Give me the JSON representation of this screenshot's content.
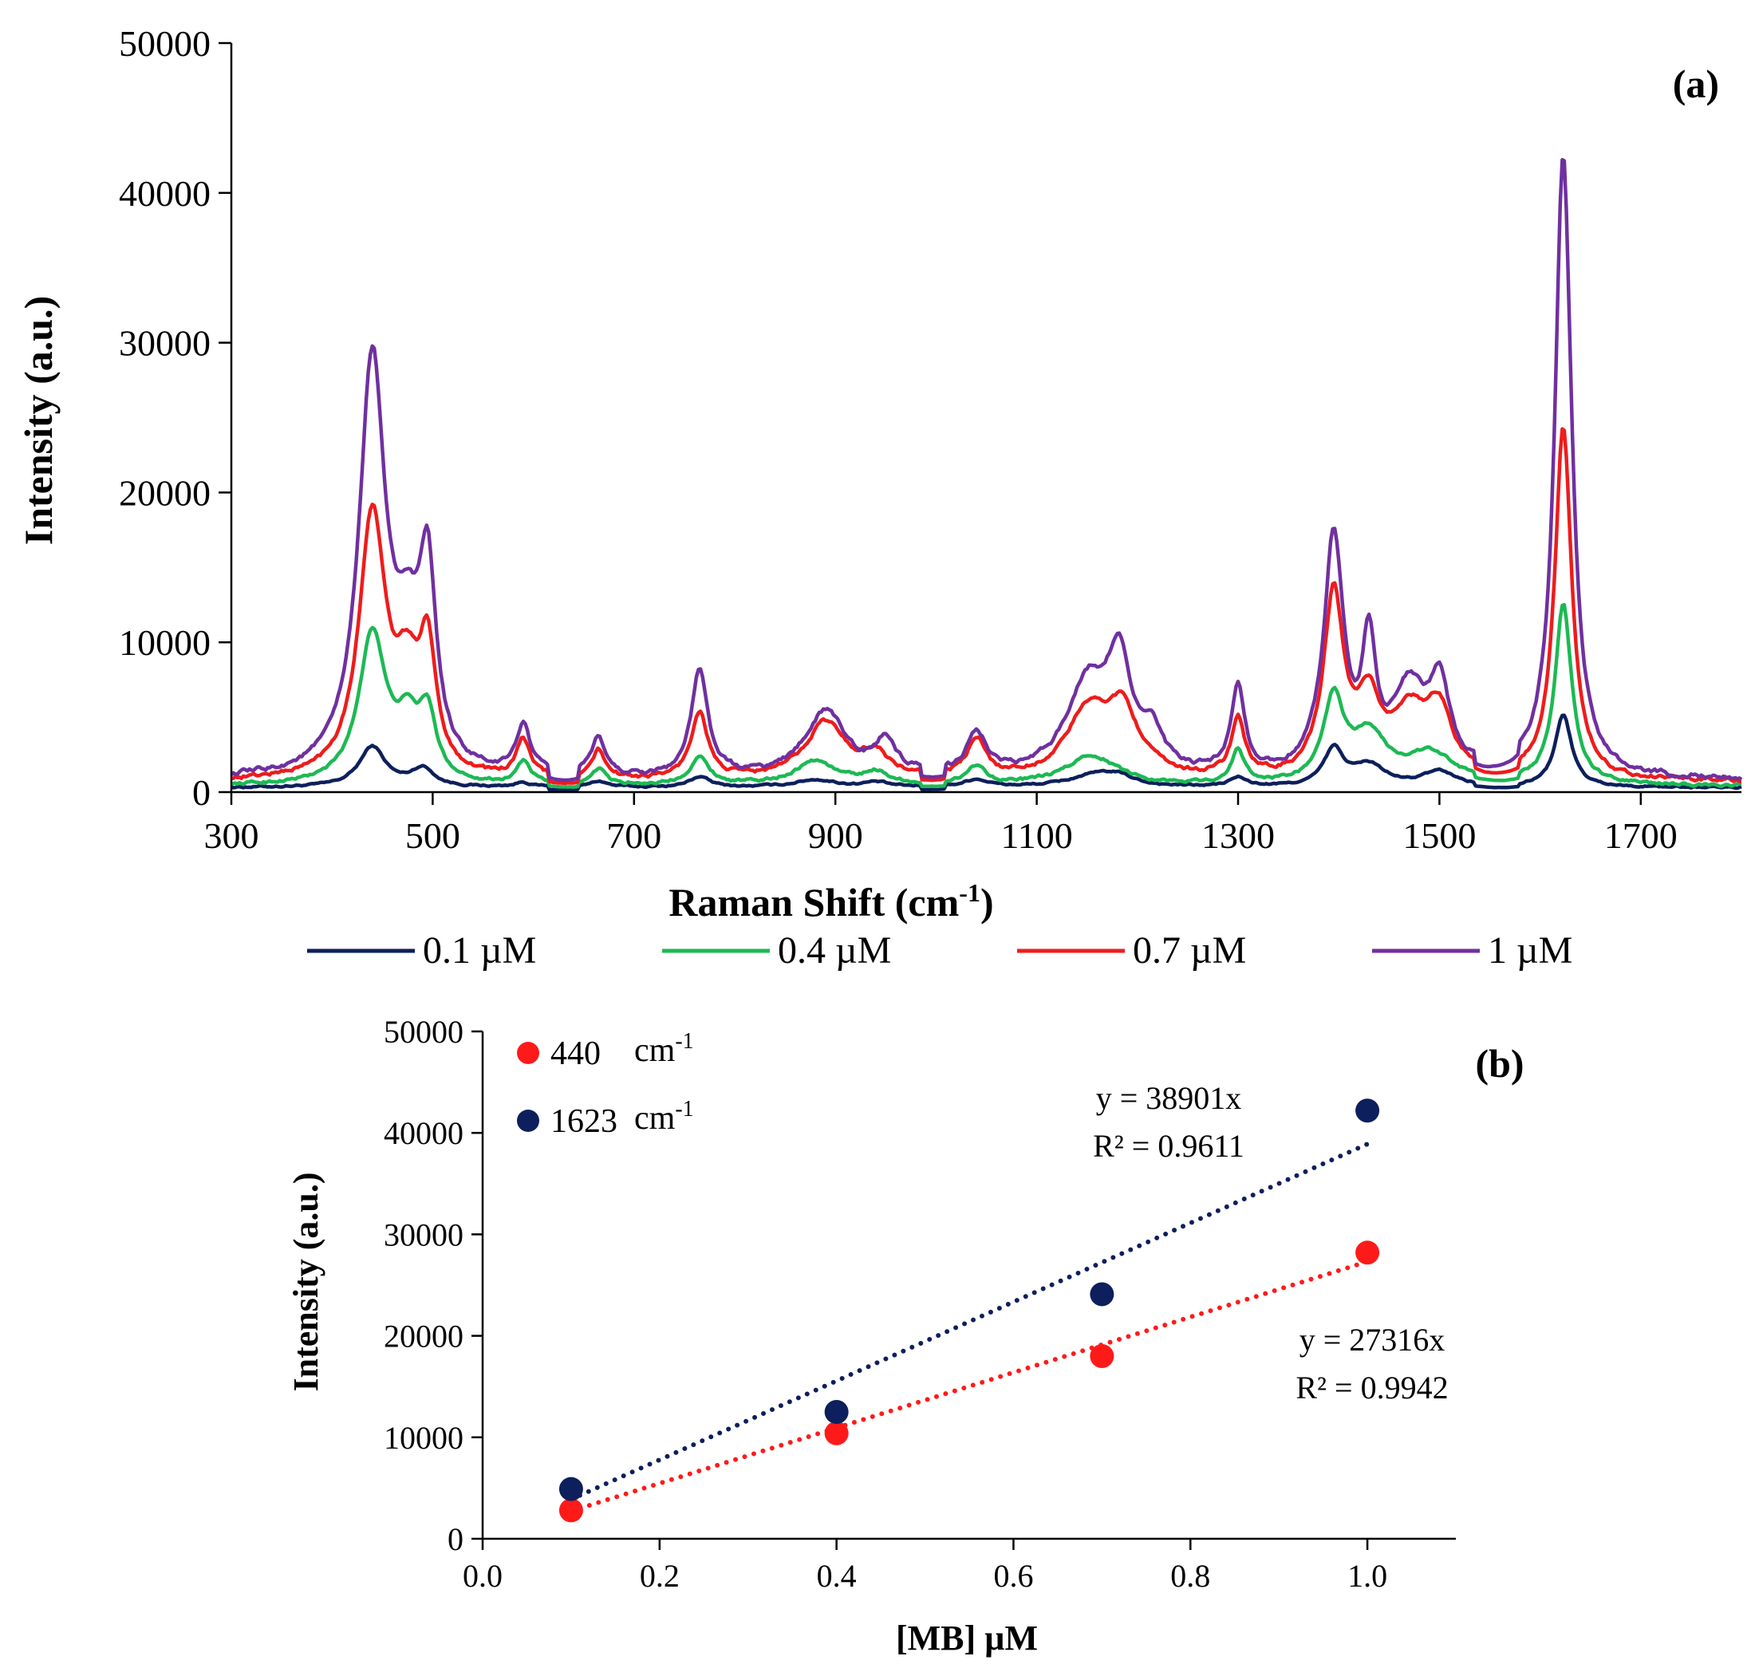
{
  "chart_data": [
    {
      "panel": "(a)",
      "type": "line",
      "xlabel": "Raman Shift (cm",
      "xlabel_sup": "-1",
      "xlabel_close": ")",
      "ylabel": "Intensity (a.u.)",
      "xlim": [
        300,
        1800
      ],
      "ylim": [
        0,
        50000
      ],
      "xticks": [
        "300",
        "500",
        "700",
        "900",
        "1100",
        "1300",
        "1500",
        "1700"
      ],
      "xtick_values": [
        300,
        500,
        700,
        900,
        1100,
        1300,
        1500,
        1700
      ],
      "yticks": [
        "0",
        "10000",
        "20000",
        "30000",
        "40000",
        "50000"
      ],
      "ytick_values": [
        0,
        10000,
        20000,
        30000,
        40000,
        50000
      ],
      "legend_position": "bottom",
      "series": [
        {
          "name": "0.1 µM",
          "color": "#0d1f5c",
          "baseline": 300,
          "scale": 1.0,
          "jitter": 150,
          "peaks": [
            [
              440,
              2700,
              16
            ],
            [
              490,
              1200,
              14
            ],
            [
              590,
              300,
              10
            ],
            [
              665,
              400,
              10
            ],
            [
              765,
              700,
              12
            ],
            [
              880,
              500,
              25
            ],
            [
              940,
              300,
              15
            ],
            [
              1040,
              500,
              15
            ],
            [
              1155,
              700,
              30
            ],
            [
              1180,
              600,
              20
            ],
            [
              1300,
              600,
              10
            ],
            [
              1395,
              2400,
              12
            ],
            [
              1430,
              1400,
              20
            ],
            [
              1500,
              1000,
              20
            ],
            [
              1623,
              4800,
              10
            ]
          ]
        },
        {
          "name": "0.4 µM",
          "color": "#1db954",
          "baseline": 400,
          "scale": 1.0,
          "jitter": 250,
          "peaks": [
            [
              440,
              10000,
              16
            ],
            [
              475,
              3500,
              15
            ],
            [
              495,
              4000,
              10
            ],
            [
              590,
              1500,
              8
            ],
            [
              665,
              1000,
              8
            ],
            [
              765,
              1800,
              12
            ],
            [
              880,
              1600,
              25
            ],
            [
              940,
              800,
              15
            ],
            [
              1040,
              1200,
              12
            ],
            [
              1155,
              2000,
              30
            ],
            [
              1300,
              2200,
              8
            ],
            [
              1395,
              5500,
              12
            ],
            [
              1430,
              3200,
              20
            ],
            [
              1490,
              2000,
              30
            ],
            [
              1623,
              12000,
              10
            ]
          ]
        },
        {
          "name": "0.7 µM",
          "color": "#ee1c1c",
          "baseline": 700,
          "scale": 1.0,
          "jitter": 350,
          "peaks": [
            [
              440,
              17500,
              16
            ],
            [
              475,
              5500,
              15
            ],
            [
              495,
              7500,
              10
            ],
            [
              590,
              2500,
              8
            ],
            [
              665,
              1800,
              8
            ],
            [
              765,
              4500,
              10
            ],
            [
              890,
              3800,
              25
            ],
            [
              940,
              1500,
              15
            ],
            [
              1040,
              2400,
              12
            ],
            [
              1150,
              4200,
              25
            ],
            [
              1185,
              4300,
              20
            ],
            [
              1300,
              3800,
              8
            ],
            [
              1395,
              12000,
              12
            ],
            [
              1430,
              4500,
              15
            ],
            [
              1470,
              4000,
              20
            ],
            [
              1500,
              4200,
              15
            ],
            [
              1623,
              23500,
              10
            ]
          ]
        },
        {
          "name": "1 µM",
          "color": "#7030a0",
          "baseline": 800,
          "scale": 1.0,
          "jitter": 400,
          "peaks": [
            [
              440,
              27500,
              16
            ],
            [
              475,
              7000,
              15
            ],
            [
              495,
              12000,
              10
            ],
            [
              590,
              3300,
              8
            ],
            [
              665,
              2500,
              8
            ],
            [
              765,
              7000,
              10
            ],
            [
              890,
              4400,
              25
            ],
            [
              950,
              2200,
              12
            ],
            [
              1040,
              2800,
              12
            ],
            [
              1150,
              6000,
              25
            ],
            [
              1182,
              7000,
              15
            ],
            [
              1215,
              2200,
              12
            ],
            [
              1300,
              6000,
              8
            ],
            [
              1395,
              15800,
              12
            ],
            [
              1430,
              8000,
              8
            ],
            [
              1470,
              5500,
              20
            ],
            [
              1500,
              5500,
              12
            ],
            [
              1623,
              41500,
              10
            ]
          ]
        }
      ]
    },
    {
      "panel": "(b)",
      "type": "scatter",
      "xlabel": "[MB] µM",
      "ylabel": "Intensity (a.u.)",
      "xlim": [
        0,
        1.1
      ],
      "ylim": [
        0,
        50000
      ],
      "xticks": [
        "0.0",
        "0.2",
        "0.4",
        "0.6",
        "0.8",
        "1.0"
      ],
      "xtick_values": [
        0,
        0.2,
        0.4,
        0.6,
        0.8,
        1.0
      ],
      "yticks": [
        "0",
        "10000",
        "20000",
        "30000",
        "40000",
        "50000"
      ],
      "ytick_values": [
        0,
        10000,
        20000,
        30000,
        40000,
        50000
      ],
      "legend_position": "top-left",
      "series": [
        {
          "name": "440",
          "unit": "cm",
          "unit_sup": "-1",
          "color": "#ff1a1a",
          "x": [
            0.1,
            0.4,
            0.7,
            1.0
          ],
          "y": [
            2800,
            10400,
            18000,
            28200
          ],
          "fit_slope": 27316,
          "fit_x": [
            0.1,
            1.0
          ],
          "equation": "y = 27316x",
          "r2": "R² = 0.9942"
        },
        {
          "name": "1623",
          "unit": "cm",
          "unit_sup": "-1",
          "color": "#0d1f5c",
          "x": [
            0.1,
            0.4,
            0.7,
            1.0
          ],
          "y": [
            4900,
            12500,
            24100,
            42200
          ],
          "fit_slope": 38901,
          "fit_x": [
            0.1,
            1.0
          ],
          "equation": "y = 38901x",
          "r2": "R² = 0.9611"
        }
      ]
    }
  ]
}
